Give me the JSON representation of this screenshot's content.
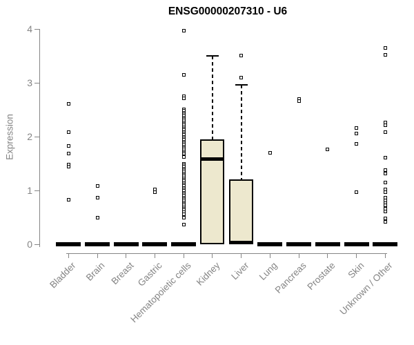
{
  "chart_data": {
    "type": "boxplot",
    "title": "ENSG00000207310 - U6",
    "ylabel": "Expression",
    "ylim": [
      0,
      4
    ],
    "yticks": [
      0,
      1,
      2,
      3,
      4
    ],
    "grid": false,
    "marker": "open-square",
    "colors": {
      "box_fill": "#EDE8CE",
      "box_border": "#000000",
      "median": "#000000",
      "axis": "#848484",
      "title": "#000000"
    },
    "categories": [
      "Bladder",
      "Brain",
      "Breast",
      "Gastric",
      "Hematopoietic cells",
      "Kidney",
      "Liver",
      "Lung",
      "Pancreas",
      "Prostate",
      "Skin",
      "Unknown / Other"
    ],
    "boxes": [
      {
        "category": "Bladder",
        "q1": 0,
        "median": 0,
        "q3": 0,
        "whisker_low": 0,
        "whisker_high": 0,
        "outliers": [
          2.61,
          2.08,
          1.83,
          1.69,
          1.48,
          1.44,
          0.83
        ]
      },
      {
        "category": "Brain",
        "q1": 0,
        "median": 0,
        "q3": 0,
        "whisker_low": 0,
        "whisker_high": 0,
        "outliers": [
          1.08,
          0.87,
          0.49
        ]
      },
      {
        "category": "Breast",
        "q1": 0,
        "median": 0,
        "q3": 0,
        "whisker_low": 0,
        "whisker_high": 0,
        "outliers": []
      },
      {
        "category": "Gastric",
        "q1": 0,
        "median": 0,
        "q3": 0,
        "whisker_low": 0,
        "whisker_high": 0,
        "outliers": [
          1.02,
          0.97
        ]
      },
      {
        "category": "Hematopoietic cells",
        "q1": 0,
        "median": 0,
        "q3": 0,
        "whisker_low": 0,
        "whisker_high": 0,
        "outliers": [
          3.97,
          3.15,
          2.75,
          2.72,
          2.51,
          2.48,
          2.45,
          2.42,
          2.39,
          2.36,
          2.33,
          2.3,
          2.27,
          2.24,
          2.21,
          2.18,
          2.15,
          2.12,
          2.09,
          2.06,
          2.03,
          2.0,
          1.97,
          1.94,
          1.91,
          1.88,
          1.85,
          1.82,
          1.79,
          1.76,
          1.73,
          1.7,
          1.67,
          1.64,
          1.62,
          1.5,
          1.47,
          1.44,
          1.41,
          1.38,
          1.35,
          1.32,
          1.29,
          1.26,
          1.23,
          1.2,
          1.17,
          1.14,
          1.11,
          1.08,
          1.05,
          1.02,
          0.99,
          0.96,
          0.93,
          0.9,
          0.87,
          0.84,
          0.81,
          0.78,
          0.75,
          0.72,
          0.69,
          0.66,
          0.63,
          0.6,
          0.56,
          0.5,
          0.37
        ]
      },
      {
        "category": "Kidney",
        "q1": 0,
        "median": 1.59,
        "q3": 1.95,
        "whisker_low": 0,
        "whisker_high": 3.51,
        "outliers": []
      },
      {
        "category": "Liver",
        "q1": 0,
        "median": 0.03,
        "q3": 1.21,
        "whisker_low": 0,
        "whisker_high": 2.96,
        "outliers": [
          3.51,
          3.1
        ]
      },
      {
        "category": "Lung",
        "q1": 0,
        "median": 0,
        "q3": 0,
        "whisker_low": 0,
        "whisker_high": 0,
        "outliers": [
          1.7
        ]
      },
      {
        "category": "Pancreas",
        "q1": 0,
        "median": 0,
        "q3": 0,
        "whisker_low": 0,
        "whisker_high": 0,
        "outliers": [
          2.7,
          2.66
        ]
      },
      {
        "category": "Prostate",
        "q1": 0,
        "median": 0,
        "q3": 0,
        "whisker_low": 0,
        "whisker_high": 0,
        "outliers": [
          1.76
        ]
      },
      {
        "category": "Skin",
        "q1": 0,
        "median": 0,
        "q3": 0,
        "whisker_low": 0,
        "whisker_high": 0,
        "outliers": [
          2.16,
          2.06,
          1.87,
          0.97
        ]
      },
      {
        "category": "Unknown / Other",
        "q1": 0,
        "median": 0,
        "q3": 0,
        "whisker_low": 0,
        "whisker_high": 0,
        "outliers": [
          3.65,
          3.53,
          2.26,
          2.22,
          2.09,
          1.61,
          1.38,
          1.31,
          1.15,
          1.02,
          0.97,
          0.87,
          0.82,
          0.77,
          0.72,
          0.66,
          0.61,
          0.48,
          0.42
        ]
      }
    ]
  }
}
